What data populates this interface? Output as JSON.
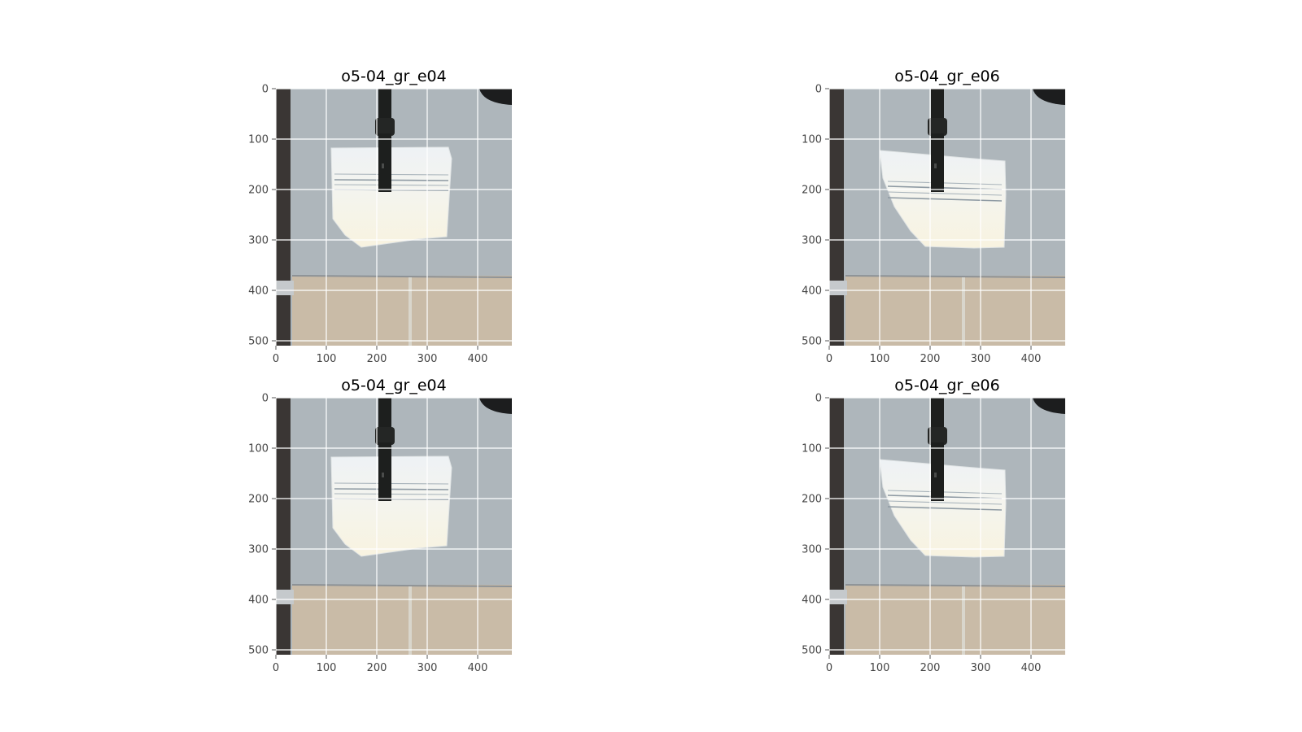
{
  "figure": {
    "panels": [
      {
        "title": "o5-04_gr_e04",
        "variant": "e04",
        "x_ticks": [
          "0",
          "100",
          "200",
          "300",
          "400"
        ],
        "y_ticks": [
          "0",
          "100",
          "200",
          "300",
          "400",
          "500"
        ]
      },
      {
        "title": "o5-04_gr_e06",
        "variant": "e06",
        "x_ticks": [
          "0",
          "100",
          "200",
          "300",
          "400"
        ],
        "y_ticks": [
          "0",
          "100",
          "200",
          "300",
          "400",
          "500"
        ]
      },
      {
        "title": "o5-04_gr_e04",
        "variant": "e04",
        "x_ticks": [
          "0",
          "100",
          "200",
          "300",
          "400"
        ],
        "y_ticks": [
          "0",
          "100",
          "200",
          "300",
          "400",
          "500"
        ]
      },
      {
        "title": "o5-04_gr_e06",
        "variant": "e06",
        "x_ticks": [
          "0",
          "100",
          "200",
          "300",
          "400"
        ],
        "y_ticks": [
          "0",
          "100",
          "200",
          "300",
          "400",
          "500"
        ]
      }
    ],
    "colors": {
      "table": "#aeb6bb",
      "floor": "#c9bba7",
      "left_strip": "#3a3634",
      "towel": "#f6f4ec",
      "gripper": "#1d1f1e",
      "grid": "#ffffff"
    }
  }
}
